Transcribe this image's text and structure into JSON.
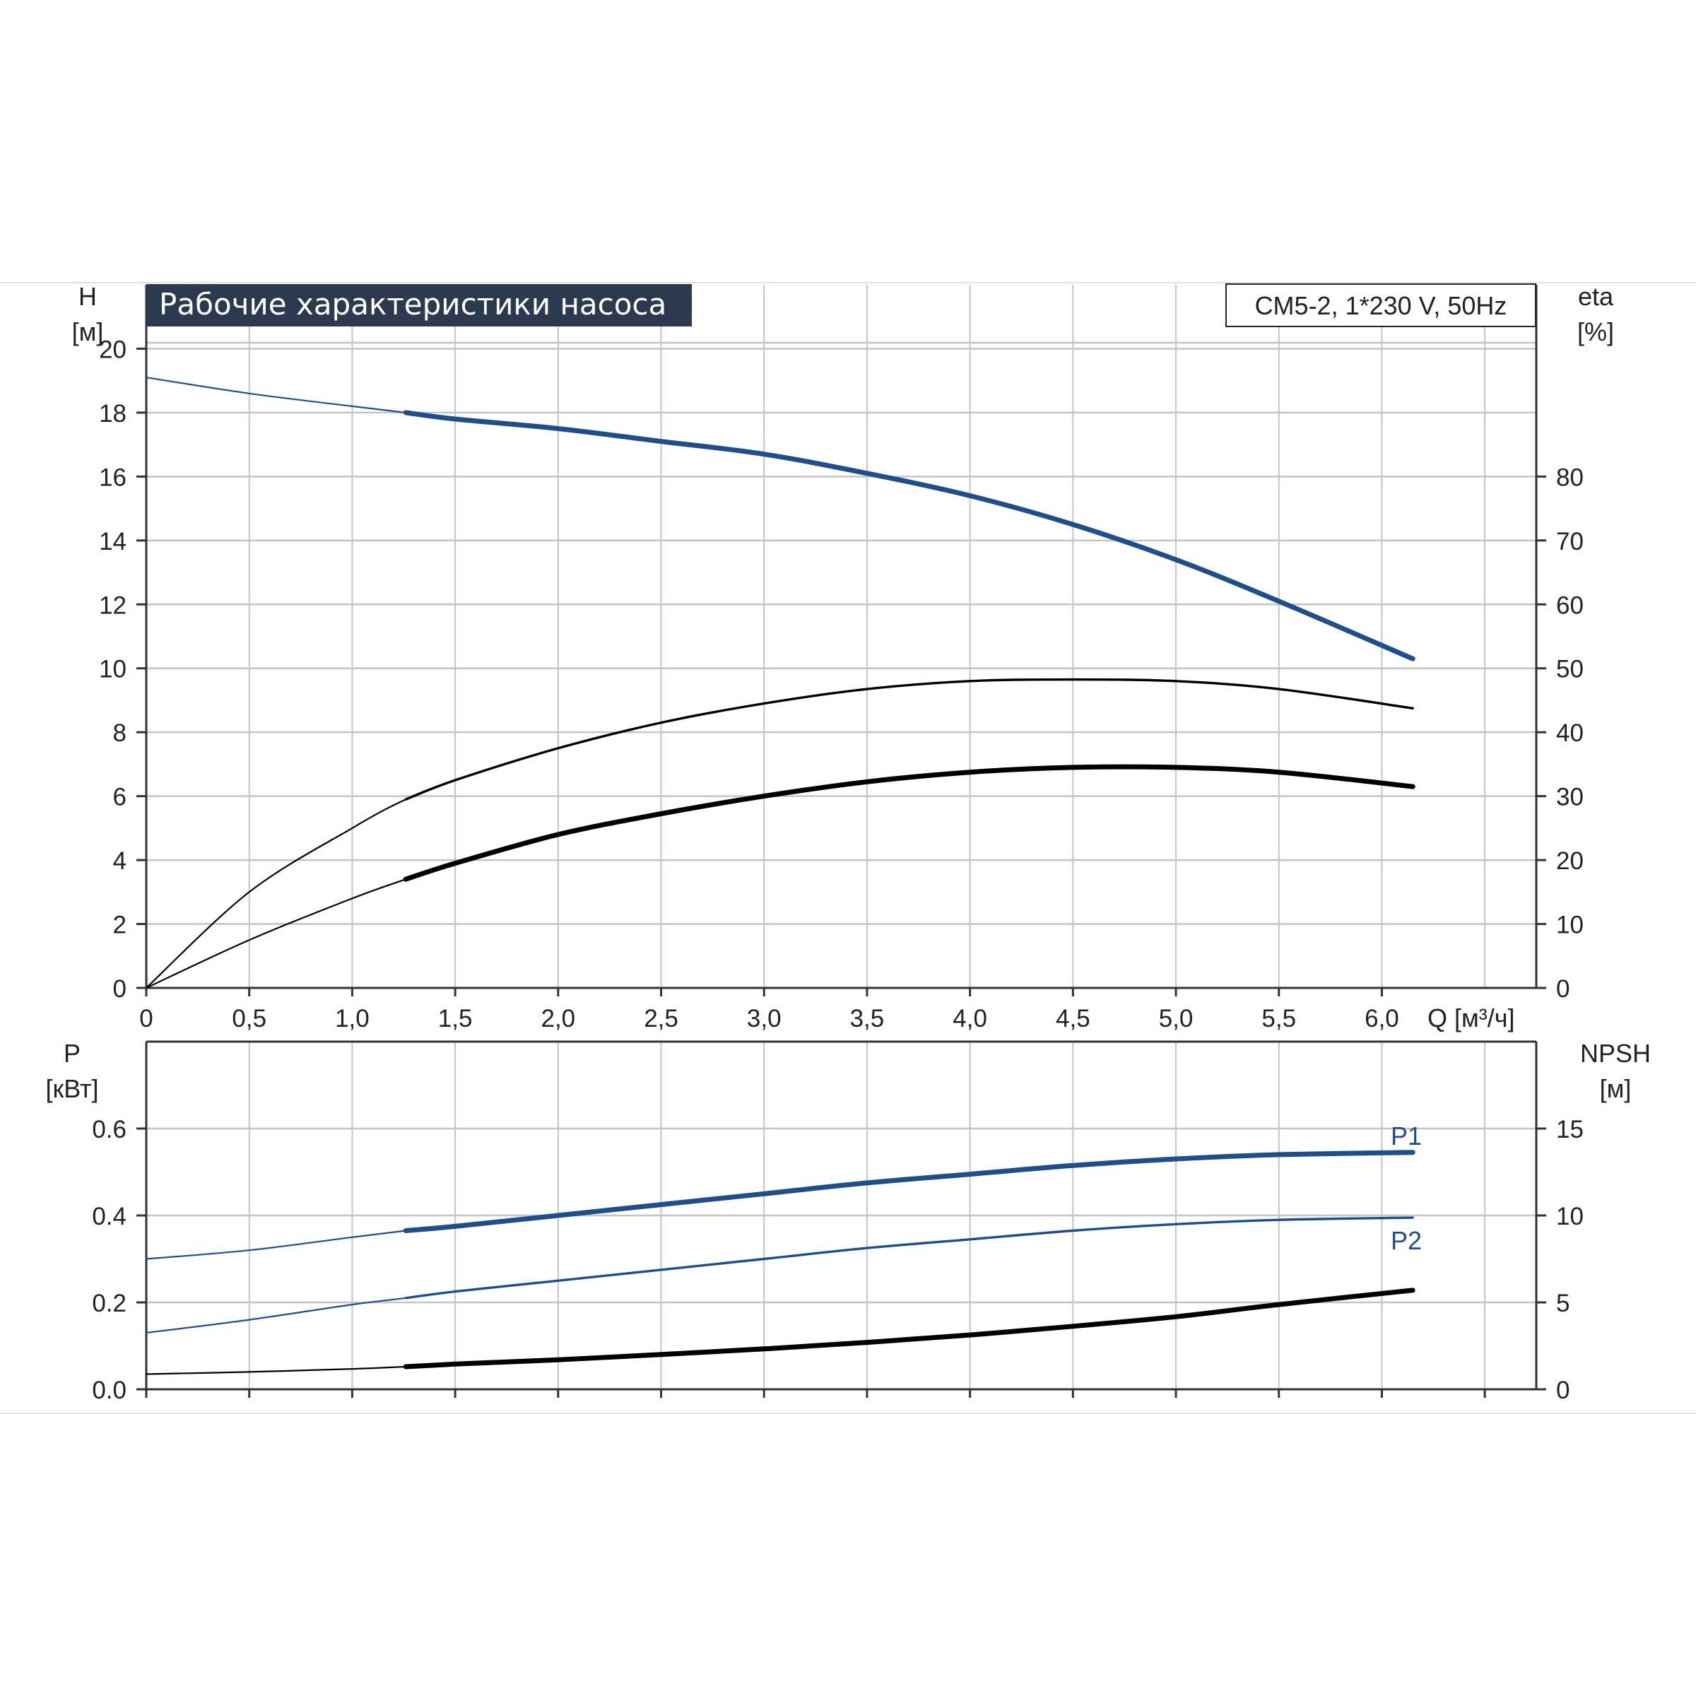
{
  "title": "Рабочие характеристики насоса",
  "model": "CM5-2, 1*230 V, 50Hz",
  "colors": {
    "blue": "#1f4e8c",
    "black": "#000000",
    "grid": "#bdbdbd",
    "title_bg": "#2b3a4e",
    "title_fg": "#ffffff"
  },
  "chart_data": [
    {
      "id": "upper",
      "type": "line",
      "xlabel": "Q [м³/ч]",
      "xlim": [
        0,
        6.75
      ],
      "x_ticks": [
        "0",
        "0,5",
        "1,0",
        "1,5",
        "2,0",
        "2,5",
        "3,0",
        "3,5",
        "4,0",
        "4,5",
        "5,0",
        "5,5",
        "6,0"
      ],
      "y_left": {
        "label_top": "H",
        "label_unit": "[м]",
        "ylim": [
          0,
          22
        ],
        "ticks": [
          0,
          2,
          4,
          6,
          8,
          10,
          12,
          14,
          16,
          18,
          20
        ]
      },
      "y_right": {
        "label_top": "eta",
        "label_unit": "[%]",
        "ylim": [
          0,
          110
        ],
        "ticks": [
          0,
          10,
          20,
          30,
          40,
          50,
          60,
          70,
          80
        ]
      },
      "grid": true,
      "series": [
        {
          "key": "H",
          "axis": "left",
          "color": "#1f4e8c",
          "x": [
            0,
            0.5,
            1.0,
            1.26,
            1.5,
            2.0,
            2.5,
            3.0,
            3.5,
            4.0,
            4.5,
            5.0,
            5.5,
            6.15
          ],
          "y": [
            19.1,
            18.6,
            18.2,
            18.0,
            17.8,
            17.5,
            17.1,
            16.7,
            16.1,
            15.4,
            14.5,
            13.4,
            12.1,
            10.3
          ],
          "thick_from": 1.26
        },
        {
          "key": "eta",
          "axis": "left",
          "color": "#000000",
          "x": [
            0,
            0.5,
            1.0,
            1.26,
            1.5,
            2.0,
            2.5,
            3.0,
            3.5,
            4.0,
            4.5,
            5.0,
            5.5,
            6.15
          ],
          "y": [
            0,
            3.0,
            5.0,
            5.9,
            6.5,
            7.5,
            8.3,
            8.9,
            9.35,
            9.6,
            9.65,
            9.6,
            9.35,
            8.75
          ],
          "thick_from": 99
        },
        {
          "key": "eta2",
          "axis": "left",
          "color": "#000000",
          "x": [
            0,
            0.5,
            1.0,
            1.26,
            1.5,
            2.0,
            2.5,
            3.0,
            3.5,
            4.0,
            4.5,
            5.0,
            5.5,
            6.15
          ],
          "y": [
            0,
            1.5,
            2.8,
            3.4,
            3.9,
            4.8,
            5.45,
            6.0,
            6.45,
            6.75,
            6.9,
            6.9,
            6.75,
            6.3
          ],
          "thick_from": 1.26
        }
      ]
    },
    {
      "id": "lower",
      "type": "line",
      "xlim": [
        0,
        6.75
      ],
      "y_left": {
        "label_top": "P",
        "label_unit": "[кВт]",
        "ylim": [
          0,
          0.8
        ],
        "ticks": [
          "0.0",
          "0.2",
          "0.4",
          "0.6"
        ]
      },
      "y_right": {
        "label_top": "NPSH",
        "label_unit": "[м]",
        "ylim": [
          0,
          20
        ],
        "ticks": [
          0,
          5,
          10,
          15
        ]
      },
      "grid": true,
      "series": [
        {
          "name": "P1",
          "axis": "left",
          "color": "#1f4e8c",
          "x": [
            0,
            0.5,
            1.0,
            1.26,
            1.5,
            2.0,
            2.5,
            3.0,
            3.5,
            4.0,
            4.5,
            5.0,
            5.5,
            6.15
          ],
          "y": [
            0.3,
            0.32,
            0.35,
            0.365,
            0.375,
            0.4,
            0.425,
            0.45,
            0.475,
            0.495,
            0.515,
            0.53,
            0.54,
            0.545
          ],
          "thick_from": 1.26
        },
        {
          "name": "P2",
          "axis": "left",
          "color": "#1f4e8c",
          "x": [
            0,
            0.5,
            1.0,
            1.26,
            1.5,
            2.0,
            2.5,
            3.0,
            3.5,
            4.0,
            4.5,
            5.0,
            5.5,
            6.15
          ],
          "y": [
            0.13,
            0.16,
            0.195,
            0.21,
            0.225,
            0.25,
            0.275,
            0.3,
            0.325,
            0.345,
            0.365,
            0.38,
            0.39,
            0.395
          ],
          "thick_from": 99
        },
        {
          "key": "NPSH",
          "axis": "left",
          "color": "#000000",
          "x": [
            0,
            0.5,
            1.0,
            1.26,
            1.5,
            2.0,
            2.5,
            3.0,
            3.5,
            4.0,
            4.5,
            5.0,
            5.5,
            6.15
          ],
          "y": [
            0.035,
            0.04,
            0.047,
            0.052,
            0.058,
            0.068,
            0.08,
            0.093,
            0.108,
            0.125,
            0.145,
            0.167,
            0.195,
            0.228
          ],
          "thick_from": 1.26
        }
      ]
    }
  ]
}
